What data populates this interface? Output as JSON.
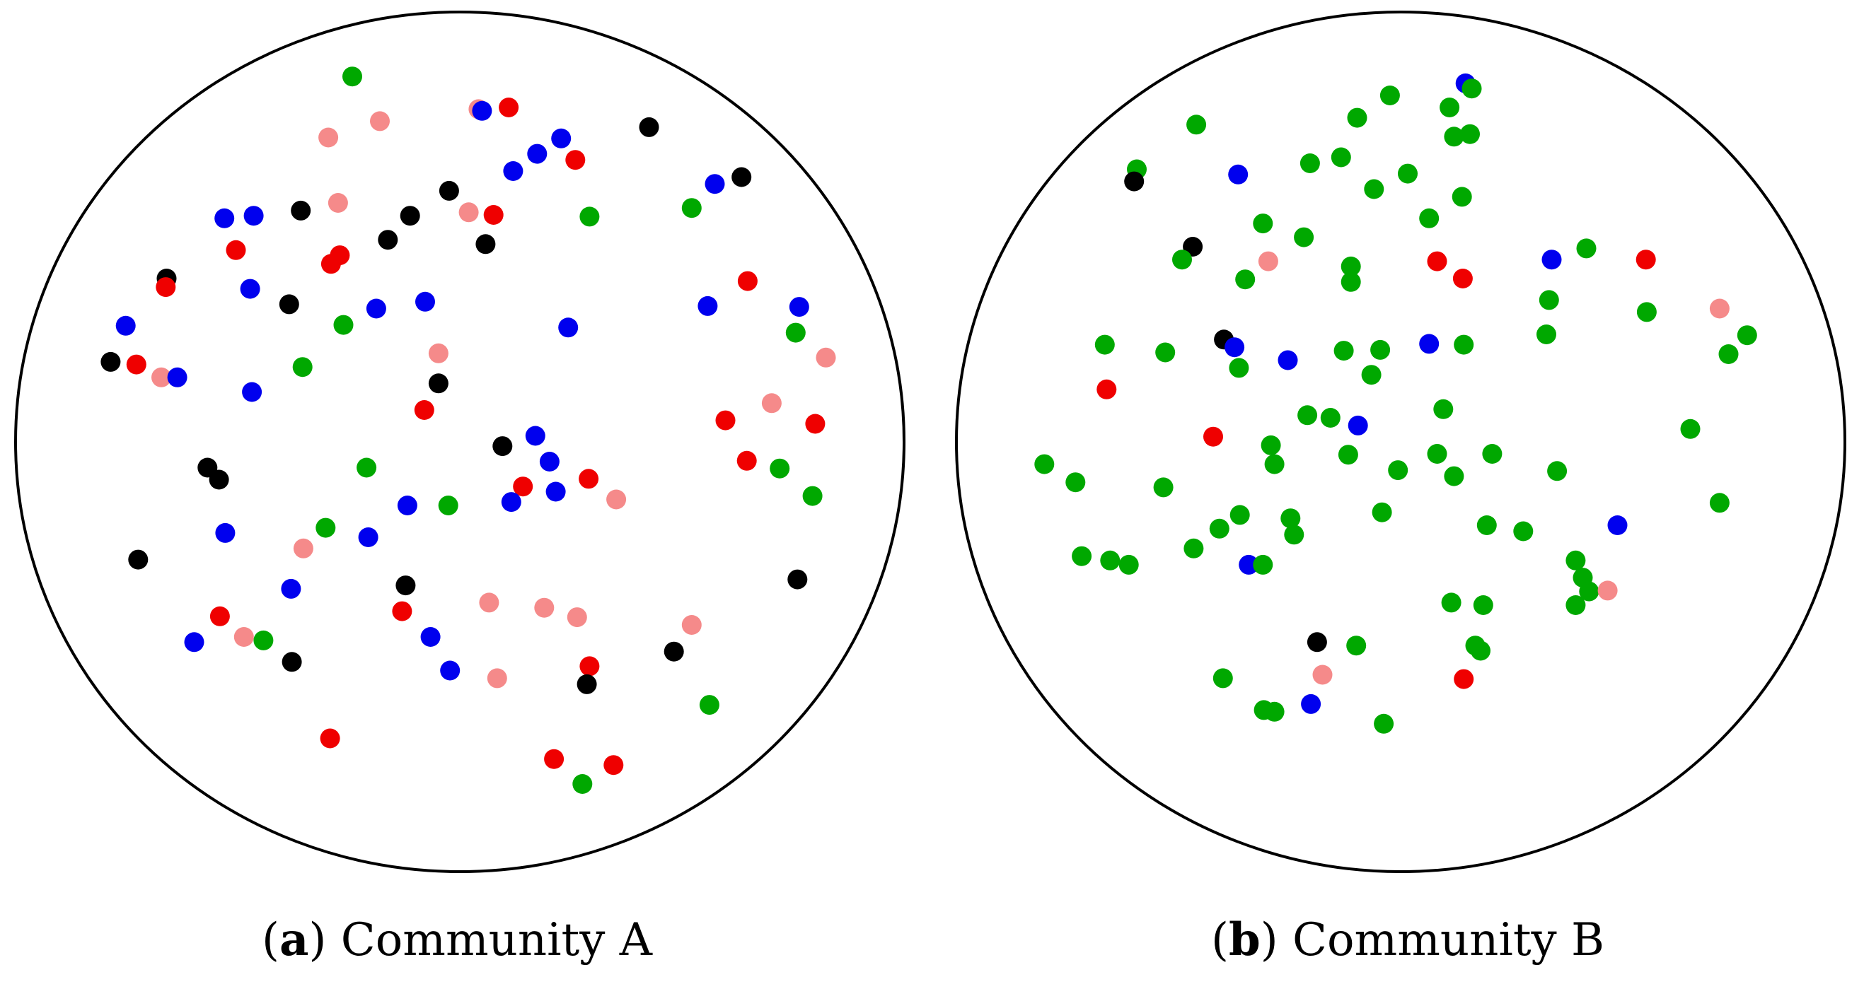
{
  "colors": {
    "red": "#ef0000",
    "blue": "#0000ee",
    "green": "#00a800",
    "black": "#000000",
    "pink": "#f58a8a"
  },
  "panels": [
    {
      "label": "a",
      "caption": "Community A",
      "points": [
        [
          "green",
          0.379,
          0.075
        ],
        [
          "pink",
          0.41,
          0.127
        ],
        [
          "pink",
          0.352,
          0.146
        ],
        [
          "pink",
          0.521,
          0.113
        ],
        [
          "blue",
          0.525,
          0.115
        ],
        [
          "red",
          0.555,
          0.111
        ],
        [
          "blue",
          0.614,
          0.147
        ],
        [
          "blue",
          0.587,
          0.165
        ],
        [
          "blue",
          0.56,
          0.185
        ],
        [
          "red",
          0.63,
          0.172
        ],
        [
          "black",
          0.713,
          0.134
        ],
        [
          "blue",
          0.787,
          0.2
        ],
        [
          "black",
          0.817,
          0.192
        ],
        [
          "green",
          0.646,
          0.238
        ],
        [
          "green",
          0.761,
          0.228
        ],
        [
          "black",
          0.488,
          0.208
        ],
        [
          "red",
          0.538,
          0.236
        ],
        [
          "pink",
          0.51,
          0.233
        ],
        [
          "black",
          0.444,
          0.237
        ],
        [
          "black",
          0.419,
          0.265
        ],
        [
          "black",
          0.529,
          0.27
        ],
        [
          "pink",
          0.363,
          0.222
        ],
        [
          "black",
          0.321,
          0.231
        ],
        [
          "red",
          0.365,
          0.283
        ],
        [
          "red",
          0.355,
          0.293
        ],
        [
          "red",
          0.248,
          0.277
        ],
        [
          "blue",
          0.235,
          0.24
        ],
        [
          "blue",
          0.268,
          0.237
        ],
        [
          "black",
          0.17,
          0.31
        ],
        [
          "red",
          0.169,
          0.32
        ],
        [
          "blue",
          0.264,
          0.322
        ],
        [
          "black",
          0.308,
          0.34
        ],
        [
          "green",
          0.369,
          0.364
        ],
        [
          "blue",
          0.406,
          0.345
        ],
        [
          "blue",
          0.461,
          0.337
        ],
        [
          "blue",
          0.622,
          0.367
        ],
        [
          "blue",
          0.124,
          0.365
        ],
        [
          "black",
          0.107,
          0.407
        ],
        [
          "red",
          0.136,
          0.41
        ],
        [
          "pink",
          0.164,
          0.425
        ],
        [
          "blue",
          0.182,
          0.425
        ],
        [
          "green",
          0.323,
          0.413
        ],
        [
          "pink",
          0.476,
          0.397
        ],
        [
          "black",
          0.476,
          0.432
        ],
        [
          "blue",
          0.266,
          0.442
        ],
        [
          "red",
          0.46,
          0.463
        ],
        [
          "red",
          0.824,
          0.313
        ],
        [
          "blue",
          0.779,
          0.342
        ],
        [
          "blue",
          0.882,
          0.343
        ],
        [
          "green",
          0.878,
          0.373
        ],
        [
          "pink",
          0.912,
          0.402
        ],
        [
          "pink",
          0.851,
          0.455
        ],
        [
          "red",
          0.799,
          0.475
        ],
        [
          "red",
          0.9,
          0.479
        ],
        [
          "red",
          0.823,
          0.522
        ],
        [
          "green",
          0.86,
          0.531
        ],
        [
          "green",
          0.897,
          0.563
        ],
        [
          "black",
          0.216,
          0.53
        ],
        [
          "black",
          0.229,
          0.544
        ],
        [
          "green",
          0.395,
          0.53
        ],
        [
          "black",
          0.548,
          0.505
        ],
        [
          "blue",
          0.585,
          0.493
        ],
        [
          "blue",
          0.601,
          0.523
        ],
        [
          "red",
          0.571,
          0.552
        ],
        [
          "blue",
          0.558,
          0.57
        ],
        [
          "blue",
          0.608,
          0.558
        ],
        [
          "red",
          0.645,
          0.543
        ],
        [
          "pink",
          0.676,
          0.567
        ],
        [
          "green",
          0.487,
          0.574
        ],
        [
          "blue",
          0.441,
          0.574
        ],
        [
          "blue",
          0.236,
          0.606
        ],
        [
          "green",
          0.349,
          0.6
        ],
        [
          "blue",
          0.397,
          0.611
        ],
        [
          "pink",
          0.324,
          0.624
        ],
        [
          "black",
          0.138,
          0.637
        ],
        [
          "blue",
          0.31,
          0.671
        ],
        [
          "black",
          0.439,
          0.667
        ],
        [
          "red",
          0.435,
          0.697
        ],
        [
          "pink",
          0.533,
          0.687
        ],
        [
          "pink",
          0.595,
          0.693
        ],
        [
          "pink",
          0.632,
          0.704
        ],
        [
          "red",
          0.23,
          0.703
        ],
        [
          "pink",
          0.257,
          0.727
        ],
        [
          "green",
          0.279,
          0.731
        ],
        [
          "blue",
          0.201,
          0.733
        ],
        [
          "blue",
          0.467,
          0.727
        ],
        [
          "black",
          0.311,
          0.756
        ],
        [
          "blue",
          0.489,
          0.766
        ],
        [
          "pink",
          0.542,
          0.775
        ],
        [
          "red",
          0.646,
          0.761
        ],
        [
          "black",
          0.643,
          0.782
        ],
        [
          "pink",
          0.761,
          0.713
        ],
        [
          "black",
          0.741,
          0.744
        ],
        [
          "black",
          0.88,
          0.66
        ],
        [
          "green",
          0.781,
          0.806
        ],
        [
          "red",
          0.354,
          0.845
        ],
        [
          "red",
          0.606,
          0.869
        ],
        [
          "red",
          0.673,
          0.876
        ],
        [
          "green",
          0.638,
          0.898
        ]
      ]
    },
    {
      "label": "b",
      "caption": "Community B",
      "points": [
        [
          "blue",
          0.573,
          0.083
        ],
        [
          "green",
          0.58,
          0.089
        ],
        [
          "green",
          0.488,
          0.097
        ],
        [
          "green",
          0.555,
          0.111
        ],
        [
          "green",
          0.451,
          0.123
        ],
        [
          "green",
          0.27,
          0.131
        ],
        [
          "green",
          0.56,
          0.145
        ],
        [
          "green",
          0.578,
          0.142
        ],
        [
          "green",
          0.433,
          0.169
        ],
        [
          "green",
          0.398,
          0.176
        ],
        [
          "green",
          0.508,
          0.188
        ],
        [
          "green",
          0.203,
          0.183
        ],
        [
          "black",
          0.2,
          0.197
        ],
        [
          "blue",
          0.317,
          0.189
        ],
        [
          "green",
          0.47,
          0.206
        ],
        [
          "green",
          0.569,
          0.215
        ],
        [
          "green",
          0.532,
          0.24
        ],
        [
          "green",
          0.345,
          0.246
        ],
        [
          "green",
          0.391,
          0.262
        ],
        [
          "black",
          0.266,
          0.273
        ],
        [
          "green",
          0.254,
          0.288
        ],
        [
          "pink",
          0.351,
          0.29
        ],
        [
          "green",
          0.325,
          0.311
        ],
        [
          "green",
          0.444,
          0.296
        ],
        [
          "green",
          0.444,
          0.314
        ],
        [
          "red",
          0.541,
          0.29
        ],
        [
          "red",
          0.57,
          0.31
        ],
        [
          "blue",
          0.67,
          0.288
        ],
        [
          "green",
          0.709,
          0.275
        ],
        [
          "red",
          0.776,
          0.288
        ],
        [
          "green",
          0.667,
          0.335
        ],
        [
          "green",
          0.777,
          0.349
        ],
        [
          "pink",
          0.859,
          0.345
        ],
        [
          "green",
          0.89,
          0.376
        ],
        [
          "green",
          0.869,
          0.398
        ],
        [
          "green",
          0.664,
          0.375
        ],
        [
          "green",
          0.167,
          0.387
        ],
        [
          "green",
          0.235,
          0.396
        ],
        [
          "black",
          0.301,
          0.381
        ],
        [
          "blue",
          0.313,
          0.39
        ],
        [
          "green",
          0.318,
          0.414
        ],
        [
          "blue",
          0.373,
          0.405
        ],
        [
          "green",
          0.436,
          0.394
        ],
        [
          "green",
          0.477,
          0.393
        ],
        [
          "green",
          0.467,
          0.422
        ],
        [
          "blue",
          0.532,
          0.386
        ],
        [
          "green",
          0.571,
          0.387
        ],
        [
          "red",
          0.169,
          0.439
        ],
        [
          "green",
          0.395,
          0.469
        ],
        [
          "green",
          0.421,
          0.472
        ],
        [
          "blue",
          0.452,
          0.481
        ],
        [
          "green",
          0.548,
          0.462
        ],
        [
          "green",
          0.826,
          0.485
        ],
        [
          "red",
          0.289,
          0.494
        ],
        [
          "green",
          0.354,
          0.504
        ],
        [
          "green",
          0.358,
          0.526
        ],
        [
          "green",
          0.441,
          0.515
        ],
        [
          "green",
          0.541,
          0.514
        ],
        [
          "green",
          0.603,
          0.514
        ],
        [
          "green",
          0.497,
          0.533
        ],
        [
          "green",
          0.56,
          0.54
        ],
        [
          "green",
          0.676,
          0.534
        ],
        [
          "green",
          0.099,
          0.526
        ],
        [
          "green",
          0.134,
          0.547
        ],
        [
          "green",
          0.233,
          0.553
        ],
        [
          "green",
          0.319,
          0.585
        ],
        [
          "green",
          0.296,
          0.601
        ],
        [
          "green",
          0.376,
          0.589
        ],
        [
          "green",
          0.38,
          0.608
        ],
        [
          "green",
          0.479,
          0.582
        ],
        [
          "green",
          0.597,
          0.597
        ],
        [
          "green",
          0.638,
          0.604
        ],
        [
          "blue",
          0.744,
          0.597
        ],
        [
          "green",
          0.859,
          0.571
        ],
        [
          "green",
          0.267,
          0.624
        ],
        [
          "green",
          0.141,
          0.633
        ],
        [
          "green",
          0.173,
          0.638
        ],
        [
          "green",
          0.194,
          0.643
        ],
        [
          "blue",
          0.329,
          0.643
        ],
        [
          "green",
          0.345,
          0.643
        ],
        [
          "green",
          0.697,
          0.638
        ],
        [
          "green",
          0.705,
          0.658
        ],
        [
          "green",
          0.712,
          0.674
        ],
        [
          "green",
          0.697,
          0.69
        ],
        [
          "pink",
          0.733,
          0.673
        ],
        [
          "green",
          0.557,
          0.687
        ],
        [
          "green",
          0.593,
          0.69
        ],
        [
          "black",
          0.406,
          0.733
        ],
        [
          "green",
          0.45,
          0.737
        ],
        [
          "green",
          0.584,
          0.737
        ],
        [
          "green",
          0.59,
          0.743
        ],
        [
          "green",
          0.3,
          0.775
        ],
        [
          "pink",
          0.412,
          0.771
        ],
        [
          "red",
          0.571,
          0.776
        ],
        [
          "blue",
          0.399,
          0.805
        ],
        [
          "green",
          0.346,
          0.812
        ],
        [
          "green",
          0.358,
          0.814
        ],
        [
          "green",
          0.481,
          0.828
        ]
      ]
    }
  ]
}
